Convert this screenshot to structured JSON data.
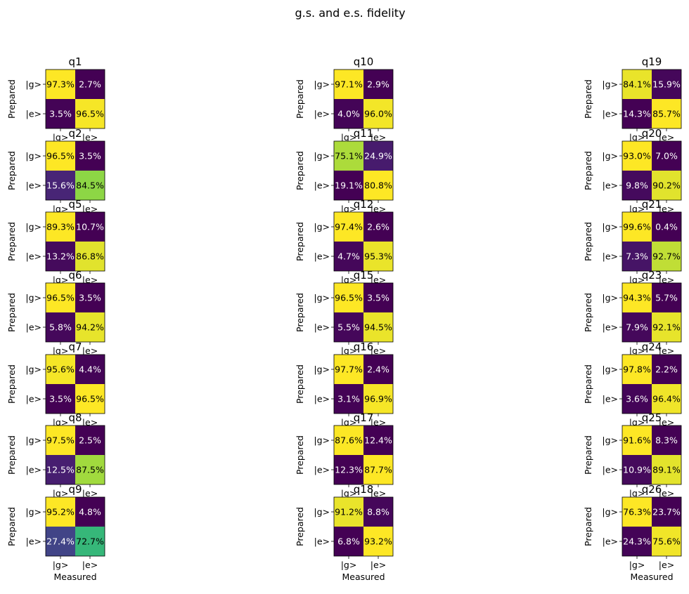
{
  "figure": {
    "title": "g.s. and e.s. fidelity"
  },
  "axis_labels": {
    "x_label": "Measured",
    "y_label": "Prepared",
    "tick_g": "|g>",
    "tick_e": "|e>"
  },
  "colors": {
    "viridis_low": "#440154",
    "viridis_high": "#fde725",
    "dark_cell_text": "#ffffff",
    "light_cell_text": "#000000"
  },
  "chart_data": {
    "type": "heatmap",
    "title": "g.s. and e.s. fidelity",
    "xlabel": "Measured",
    "ylabel": "Prepared",
    "row_labels": [
      "|g>",
      "|e>"
    ],
    "col_labels": [
      "|g>",
      "|e>"
    ],
    "colormap": "viridis",
    "panels": [
      {
        "name": "q1",
        "labels": [
          [
            "97.3%",
            "2.7%"
          ],
          [
            "3.5%",
            "96.5%"
          ]
        ],
        "values": [
          [
            97.3,
            2.7
          ],
          [
            3.5,
            96.5
          ]
        ]
      },
      {
        "name": "q2",
        "labels": [
          [
            "96.5%",
            "3.5%"
          ],
          [
            "15.6%",
            "84.5%"
          ]
        ],
        "values": [
          [
            96.5,
            3.5
          ],
          [
            15.6,
            84.5
          ]
        ]
      },
      {
        "name": "q5",
        "labels": [
          [
            "89.3%",
            "10.7%"
          ],
          [
            "13.2%",
            "86.8%"
          ]
        ],
        "values": [
          [
            89.3,
            10.7
          ],
          [
            13.2,
            86.8
          ]
        ]
      },
      {
        "name": "q6",
        "labels": [
          [
            "96.5%",
            "3.5%"
          ],
          [
            "5.8%",
            "94.2%"
          ]
        ],
        "values": [
          [
            96.5,
            3.5
          ],
          [
            5.8,
            94.2
          ]
        ]
      },
      {
        "name": "q7",
        "labels": [
          [
            "95.6%",
            "4.4%"
          ],
          [
            "3.5%",
            "96.5%"
          ]
        ],
        "values": [
          [
            95.6,
            4.4
          ],
          [
            3.5,
            96.5
          ]
        ]
      },
      {
        "name": "q8",
        "labels": [
          [
            "97.5%",
            "2.5%"
          ],
          [
            "12.5%",
            "87.5%"
          ]
        ],
        "values": [
          [
            97.5,
            2.5
          ],
          [
            12.5,
            87.5
          ]
        ]
      },
      {
        "name": "q9",
        "labels": [
          [
            "95.2%",
            "4.8%"
          ],
          [
            "27.4%",
            "72.7%"
          ]
        ],
        "values": [
          [
            95.2,
            4.8
          ],
          [
            27.4,
            72.7
          ]
        ]
      },
      {
        "name": "q10",
        "labels": [
          [
            "97.1%",
            "2.9%"
          ],
          [
            "4.0%",
            "96.0%"
          ]
        ],
        "values": [
          [
            97.1,
            2.9
          ],
          [
            4.0,
            96.0
          ]
        ]
      },
      {
        "name": "q11",
        "labels": [
          [
            "75.1%",
            "24.9%"
          ],
          [
            "19.1%",
            "80.8%"
          ]
        ],
        "values": [
          [
            75.1,
            24.9
          ],
          [
            19.1,
            80.8
          ]
        ]
      },
      {
        "name": "q12",
        "labels": [
          [
            "97.4%",
            "2.6%"
          ],
          [
            "4.7%",
            "95.3%"
          ]
        ],
        "values": [
          [
            97.4,
            2.6
          ],
          [
            4.7,
            95.3
          ]
        ]
      },
      {
        "name": "q15",
        "labels": [
          [
            "96.5%",
            "3.5%"
          ],
          [
            "5.5%",
            "94.5%"
          ]
        ],
        "values": [
          [
            96.5,
            3.5
          ],
          [
            5.5,
            94.5
          ]
        ]
      },
      {
        "name": "q16",
        "labels": [
          [
            "97.7%",
            "2.4%"
          ],
          [
            "3.1%",
            "96.9%"
          ]
        ],
        "values": [
          [
            97.7,
            2.4
          ],
          [
            3.1,
            96.9
          ]
        ]
      },
      {
        "name": "q17",
        "labels": [
          [
            "87.6%",
            "12.4%"
          ],
          [
            "12.3%",
            "87.7%"
          ]
        ],
        "values": [
          [
            87.6,
            12.4
          ],
          [
            12.3,
            87.7
          ]
        ]
      },
      {
        "name": "q18",
        "labels": [
          [
            "91.2%",
            "8.8%"
          ],
          [
            "6.8%",
            "93.2%"
          ]
        ],
        "values": [
          [
            91.2,
            8.8
          ],
          [
            6.8,
            93.2
          ]
        ]
      },
      {
        "name": "q19",
        "labels": [
          [
            "84.1%",
            "15.9%"
          ],
          [
            "14.3%",
            "85.7%"
          ]
        ],
        "values": [
          [
            84.1,
            15.9
          ],
          [
            14.3,
            85.7
          ]
        ]
      },
      {
        "name": "q20",
        "labels": [
          [
            "93.0%",
            "7.0%"
          ],
          [
            "9.8%",
            "90.2%"
          ]
        ],
        "values": [
          [
            93.0,
            7.0
          ],
          [
            9.8,
            90.2
          ]
        ]
      },
      {
        "name": "q21",
        "labels": [
          [
            "99.6%",
            "0.4%"
          ],
          [
            "7.3%",
            "92.7%"
          ]
        ],
        "values": [
          [
            99.6,
            0.4
          ],
          [
            7.3,
            92.7
          ]
        ]
      },
      {
        "name": "q23",
        "labels": [
          [
            "94.3%",
            "5.7%"
          ],
          [
            "7.9%",
            "92.1%"
          ]
        ],
        "values": [
          [
            94.3,
            5.7
          ],
          [
            7.9,
            92.1
          ]
        ]
      },
      {
        "name": "q24",
        "labels": [
          [
            "97.8%",
            "2.2%"
          ],
          [
            "3.6%",
            "96.4%"
          ]
        ],
        "values": [
          [
            97.8,
            2.2
          ],
          [
            3.6,
            96.4
          ]
        ]
      },
      {
        "name": "q25",
        "labels": [
          [
            "91.6%",
            "8.3%"
          ],
          [
            "10.9%",
            "89.1%"
          ]
        ],
        "values": [
          [
            91.6,
            8.3
          ],
          [
            10.9,
            89.1
          ]
        ]
      },
      {
        "name": "q26",
        "labels": [
          [
            "76.3%",
            "23.7%"
          ],
          [
            "24.3%",
            "75.6%"
          ]
        ],
        "values": [
          [
            76.3,
            23.7
          ],
          [
            24.3,
            75.6
          ]
        ]
      }
    ]
  }
}
